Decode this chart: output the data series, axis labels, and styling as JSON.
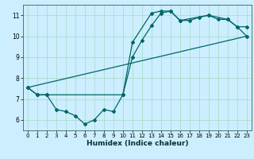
{
  "xlabel": "Humidex (Indice chaleur)",
  "ylabel": "",
  "bg_color": "#cceeff",
  "grid_color": "#aaddcc",
  "line_color": "#006666",
  "xlim": [
    -0.5,
    23.5
  ],
  "ylim": [
    5.5,
    11.5
  ],
  "xticks": [
    0,
    1,
    2,
    3,
    4,
    5,
    6,
    7,
    8,
    9,
    10,
    11,
    12,
    13,
    14,
    15,
    16,
    17,
    18,
    19,
    20,
    21,
    22,
    23
  ],
  "yticks": [
    6,
    7,
    8,
    9,
    10,
    11
  ],
  "line1_x": [
    0,
    1,
    2,
    3,
    4,
    5,
    6,
    7,
    8,
    9,
    10,
    11,
    13,
    14,
    15,
    16,
    19,
    21,
    22,
    23
  ],
  "line1_y": [
    7.55,
    7.2,
    7.2,
    6.5,
    6.4,
    6.2,
    5.8,
    6.0,
    6.5,
    6.4,
    7.2,
    9.7,
    11.1,
    11.2,
    11.2,
    10.75,
    11.0,
    10.8,
    10.45,
    10.45
  ],
  "line2_x": [
    0,
    1,
    2,
    10,
    11,
    12,
    13,
    14,
    15,
    16,
    17,
    18,
    19,
    20,
    21,
    22,
    23
  ],
  "line2_y": [
    7.55,
    7.2,
    7.2,
    7.2,
    9.0,
    9.8,
    10.5,
    11.1,
    11.2,
    10.75,
    10.75,
    10.9,
    11.0,
    10.8,
    10.8,
    10.45,
    10.0
  ],
  "line3_x": [
    0,
    23
  ],
  "line3_y": [
    7.55,
    10.0
  ],
  "marker_size": 2.0,
  "linewidth": 0.9,
  "tick_fontsize": 5.0,
  "xlabel_fontsize": 6.5
}
